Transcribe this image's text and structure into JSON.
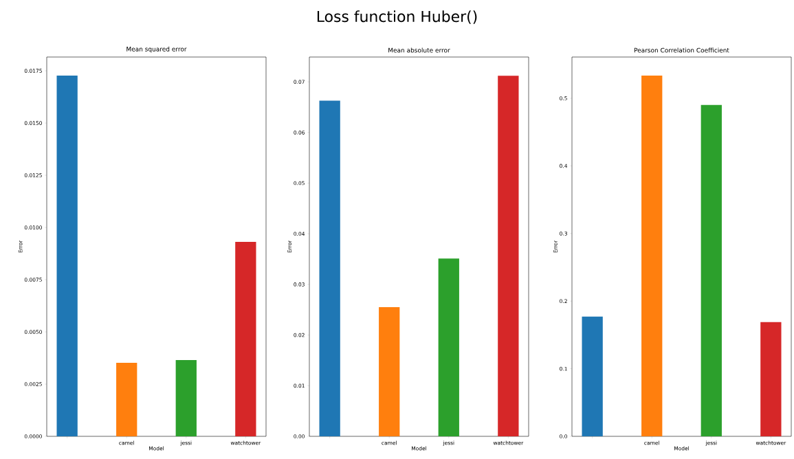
{
  "chart_data": [
    {
      "type": "bar",
      "title": "Mean squared error",
      "xlabel": "Model",
      "ylabel": "Error",
      "annotations": [
        "Loss function Huber()"
      ],
      "categories": [
        null,
        "camel",
        "jessi",
        "watchtower"
      ],
      "values": [
        0.01727,
        0.00352,
        0.00365,
        0.00931
      ],
      "colors": [
        "#1f77b4",
        "#ff7f0e",
        "#2ca02c",
        "#d62728"
      ],
      "ylim": [
        0,
        0.01816
      ],
      "yticks": [
        {
          "value": 0,
          "label": "0.0000"
        },
        {
          "value": 0.0025,
          "label": "0.0025"
        },
        {
          "value": 0.005,
          "label": "0.0050"
        },
        {
          "value": 0.0075,
          "label": "0.0075"
        },
        {
          "value": 0.01,
          "label": "0.0100"
        },
        {
          "value": 0.0125,
          "label": "0.0125"
        },
        {
          "value": 0.015,
          "label": "0.0150"
        },
        {
          "value": 0.0175,
          "label": "0.0175"
        }
      ]
    },
    {
      "type": "bar",
      "title": "Mean absolute error",
      "xlabel": "Model",
      "ylabel": "Error",
      "categories": [
        null,
        "camel",
        "jessi",
        "watchtower"
      ],
      "values": [
        0.0663,
        0.0255,
        0.0351,
        0.0712
      ],
      "colors": [
        "#1f77b4",
        "#ff7f0e",
        "#2ca02c",
        "#d62728"
      ],
      "ylim": [
        0,
        0.0749
      ],
      "yticks": [
        {
          "value": 0,
          "label": "0.00"
        },
        {
          "value": 0.01,
          "label": "0.01"
        },
        {
          "value": 0.02,
          "label": "0.02"
        },
        {
          "value": 0.03,
          "label": "0.03"
        },
        {
          "value": 0.04,
          "label": "0.04"
        },
        {
          "value": 0.05,
          "label": "0.05"
        },
        {
          "value": 0.06,
          "label": "0.06"
        },
        {
          "value": 0.07,
          "label": "0.07"
        }
      ]
    },
    {
      "type": "bar",
      "title": "Pearson Correlation Coefficient",
      "xlabel": "Model",
      "ylabel": "Error",
      "categories": [
        null,
        "camel",
        "jessi",
        "watchtower"
      ],
      "values": [
        0.177,
        0.5335,
        0.49,
        0.169
      ],
      "colors": [
        "#1f77b4",
        "#ff7f0e",
        "#2ca02c",
        "#d62728"
      ],
      "ylim": [
        0,
        0.561
      ],
      "yticks": [
        {
          "value": 0,
          "label": "0.0"
        },
        {
          "value": 0.1,
          "label": "0.1"
        },
        {
          "value": 0.2,
          "label": "0.2"
        },
        {
          "value": 0.3,
          "label": "0.3"
        },
        {
          "value": 0.4,
          "label": "0.4"
        },
        {
          "value": 0.5,
          "label": "0.5"
        }
      ]
    }
  ]
}
